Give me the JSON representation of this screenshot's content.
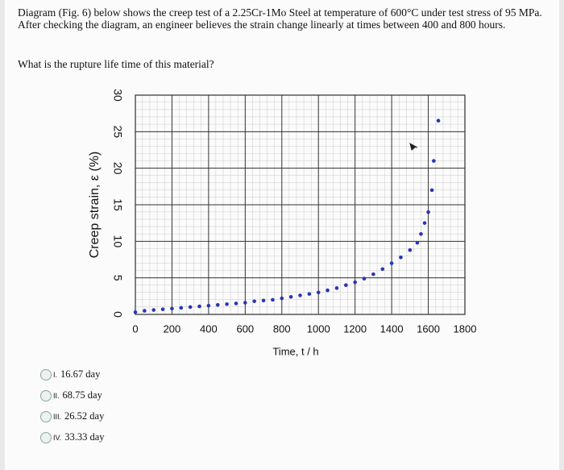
{
  "question": {
    "text": "Diagram (Fig. 6) below shows the creep test of a 2.25Cr-1Mo Steel at temperature of 600°C under test stress of 95 MPa. After checking the diagram, an engineer believes the strain change linearly at times between 400 and 800 hours.",
    "prompt": "What is the rupture life time of this material?"
  },
  "chart_data": {
    "type": "scatter",
    "xlabel": "Time, t / h",
    "ylabel": "Creep strain, ε (%)",
    "x": [
      0,
      50,
      100,
      150,
      200,
      250,
      300,
      350,
      400,
      450,
      500,
      550,
      600,
      650,
      700,
      750,
      800,
      850,
      900,
      950,
      1000,
      1050,
      1100,
      1150,
      1200,
      1250,
      1300,
      1350,
      1400,
      1450,
      1500,
      1540,
      1560,
      1580,
      1600,
      1620,
      1630,
      1655
    ],
    "values": [
      0.3,
      0.5,
      0.6,
      0.7,
      0.8,
      0.9,
      1.0,
      1.1,
      1.2,
      1.3,
      1.4,
      1.5,
      1.6,
      1.8,
      1.9,
      2.0,
      2.2,
      2.4,
      2.6,
      2.8,
      3.0,
      3.3,
      3.6,
      4.0,
      4.4,
      4.9,
      5.5,
      6.2,
      7.0,
      7.8,
      8.8,
      9.8,
      11,
      12.5,
      14,
      17,
      21,
      26.5
    ],
    "color": "#2a35b8",
    "xlim": [
      0,
      1800
    ],
    "ylim": [
      0,
      30
    ],
    "xticks": [
      0,
      200,
      400,
      600,
      800,
      1000,
      1200,
      1400,
      1600,
      1800
    ],
    "yticks": [
      0,
      5,
      10,
      15,
      20,
      25,
      30
    ],
    "grid": true
  },
  "options": [
    {
      "label": "I.",
      "text": "16.67 day"
    },
    {
      "label": "II.",
      "text": "68.75 day"
    },
    {
      "label": "III.",
      "text": "26.52 day"
    },
    {
      "label": "IV.",
      "text": "33.33 day"
    }
  ]
}
